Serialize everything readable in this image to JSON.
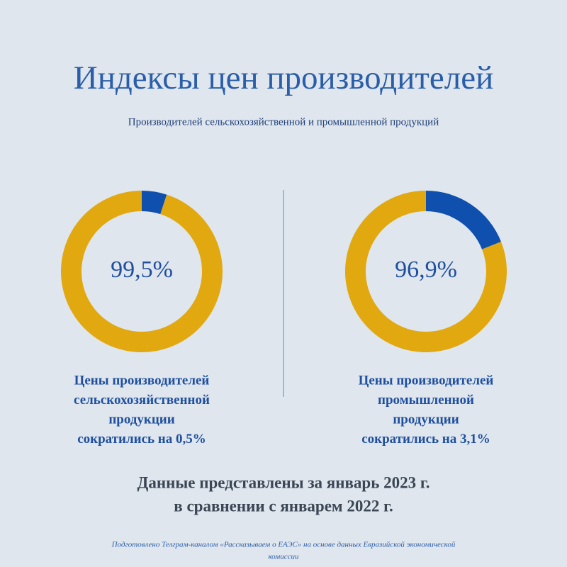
{
  "title": "Индексы цен производителей",
  "subtitle": "Производителей сельскохозяйственной и промышленной продукций",
  "chart_data": [
    {
      "type": "donut",
      "center_label": "99,5%",
      "values": [
        5,
        95
      ],
      "colors": [
        "#0f4fae",
        "#e2a80f"
      ],
      "caption": [
        "Цены производителей",
        "сельскохозяйственной",
        "продукции",
        "сократились на 0,5%"
      ]
    },
    {
      "type": "donut",
      "center_label": "96,9%",
      "values": [
        19,
        81
      ],
      "colors": [
        "#0f4fae",
        "#e2a80f"
      ],
      "caption": [
        "Цены производителей",
        "промышленной",
        "продукции",
        "сократились на 3,1%"
      ]
    }
  ],
  "note": [
    "Данные представлены за январь 2023 г.",
    "в сравнении с январем 2022 г."
  ],
  "footer": [
    "Подготовлено Телграм-каналом «Рассказываем о ЕАЭС» на основе данных Евразийской экономической",
    "комиссии"
  ]
}
